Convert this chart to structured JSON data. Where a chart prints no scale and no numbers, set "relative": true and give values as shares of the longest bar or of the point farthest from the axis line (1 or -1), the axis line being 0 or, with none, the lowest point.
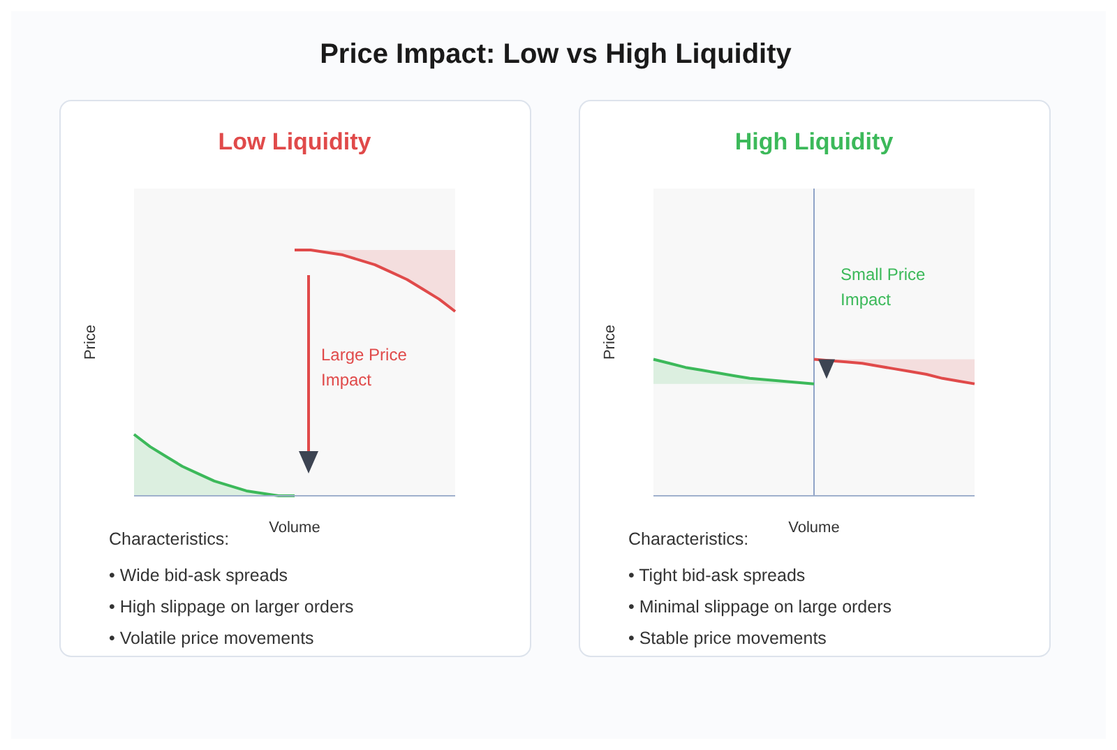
{
  "chart_data": [
    {
      "type": "line",
      "title": "Price Impact: Low vs High Liquidity",
      "subtitle": "Low Liquidity",
      "xlabel": "Volume",
      "ylabel": "Price",
      "relative": true,
      "categories": [
        null,
        null,
        null,
        null,
        null,
        null,
        null,
        null,
        null,
        null,
        null,
        null,
        null,
        null,
        null,
        null,
        null,
        null,
        null,
        null,
        null
      ],
      "series": [
        {
          "color": "#3cb95a",
          "values": [
            0.25,
            0.2,
            0.16,
            0.12,
            0.09,
            0.06,
            0.04,
            0.02,
            0.01,
            0,
            0,
            null,
            null,
            null,
            null,
            null,
            null,
            null,
            null,
            null,
            null
          ],
          "lower": [
            0,
            0,
            0,
            0,
            0,
            0,
            0,
            0,
            0,
            0,
            0,
            null,
            null,
            null,
            null,
            null,
            null,
            null,
            null,
            null,
            null
          ],
          "upper": [
            0.25,
            0.2,
            0.16,
            0.12,
            0.09,
            0.06,
            0.04,
            0.02,
            0.01,
            0,
            0,
            null,
            null,
            null,
            null,
            null,
            null,
            null,
            null,
            null,
            null
          ]
        },
        {
          "color": "#e04a4a",
          "values": [
            null,
            null,
            null,
            null,
            null,
            null,
            null,
            null,
            null,
            null,
            1,
            1,
            0.99,
            0.98,
            0.96,
            0.94,
            0.91,
            0.88,
            0.84,
            0.8,
            0.75
          ],
          "lower": [
            null,
            null,
            null,
            null,
            null,
            null,
            null,
            null,
            null,
            null,
            1,
            1,
            0.99,
            0.98,
            0.96,
            0.94,
            0.91,
            0.88,
            0.84,
            0.8,
            0.75
          ],
          "upper": [
            null,
            null,
            null,
            null,
            null,
            null,
            null,
            null,
            null,
            null,
            1,
            1,
            1,
            1,
            1,
            1,
            1,
            1,
            1,
            1,
            1
          ]
        }
      ],
      "annotations": [
        "Large Price Impact",
        "Characteristics:",
        "• Wide bid-ask spreads",
        "• High slippage on larger orders",
        "• Volatile price movements"
      ]
    },
    {
      "type": "line",
      "subtitle": "High Liquidity",
      "xlabel": "Volume",
      "ylabel": "Price",
      "relative": true,
      "categories": [
        null,
        null,
        null,
        null,
        null,
        null,
        null,
        null,
        null,
        null,
        null,
        null,
        null,
        null,
        null,
        null,
        null,
        null,
        null,
        null,
        null
      ],
      "series": [
        {
          "color": "#3cb95a",
          "values": [
            1,
            0.97,
            0.94,
            0.92,
            0.9,
            0.88,
            0.86,
            0.85,
            0.84,
            0.83,
            0.82,
            null,
            null,
            null,
            null,
            null,
            null,
            null,
            null,
            null,
            null
          ],
          "lower": [
            0.82,
            0.82,
            0.82,
            0.82,
            0.82,
            0.82,
            0.82,
            0.82,
            0.82,
            0.82,
            0.82,
            null,
            null,
            null,
            null,
            null,
            null,
            null,
            null,
            null,
            null
          ],
          "upper": [
            1,
            0.97,
            0.94,
            0.92,
            0.9,
            0.88,
            0.86,
            0.85,
            0.84,
            0.83,
            0.82,
            null,
            null,
            null,
            null,
            null,
            null,
            null,
            null,
            null,
            null
          ]
        },
        {
          "color": "#e04a4a",
          "values": [
            null,
            null,
            null,
            null,
            null,
            null,
            null,
            null,
            null,
            null,
            1,
            0.99,
            0.98,
            0.97,
            0.95,
            0.93,
            0.91,
            0.89,
            0.86,
            0.84,
            0.82
          ],
          "lower": [
            null,
            null,
            null,
            null,
            null,
            null,
            null,
            null,
            null,
            null,
            1,
            0.99,
            0.98,
            0.97,
            0.95,
            0.93,
            0.91,
            0.89,
            0.86,
            0.84,
            0.82
          ],
          "upper": [
            null,
            null,
            null,
            null,
            null,
            null,
            null,
            null,
            null,
            null,
            1,
            1,
            1,
            1,
            1,
            1,
            1,
            1,
            1,
            1,
            1
          ]
        }
      ],
      "annotations": [
        "Small Price Impact",
        "Characteristics:",
        "• Tight bid-ask spreads",
        "• Minimal slippage on large orders",
        "• Stable price movements"
      ]
    }
  ]
}
